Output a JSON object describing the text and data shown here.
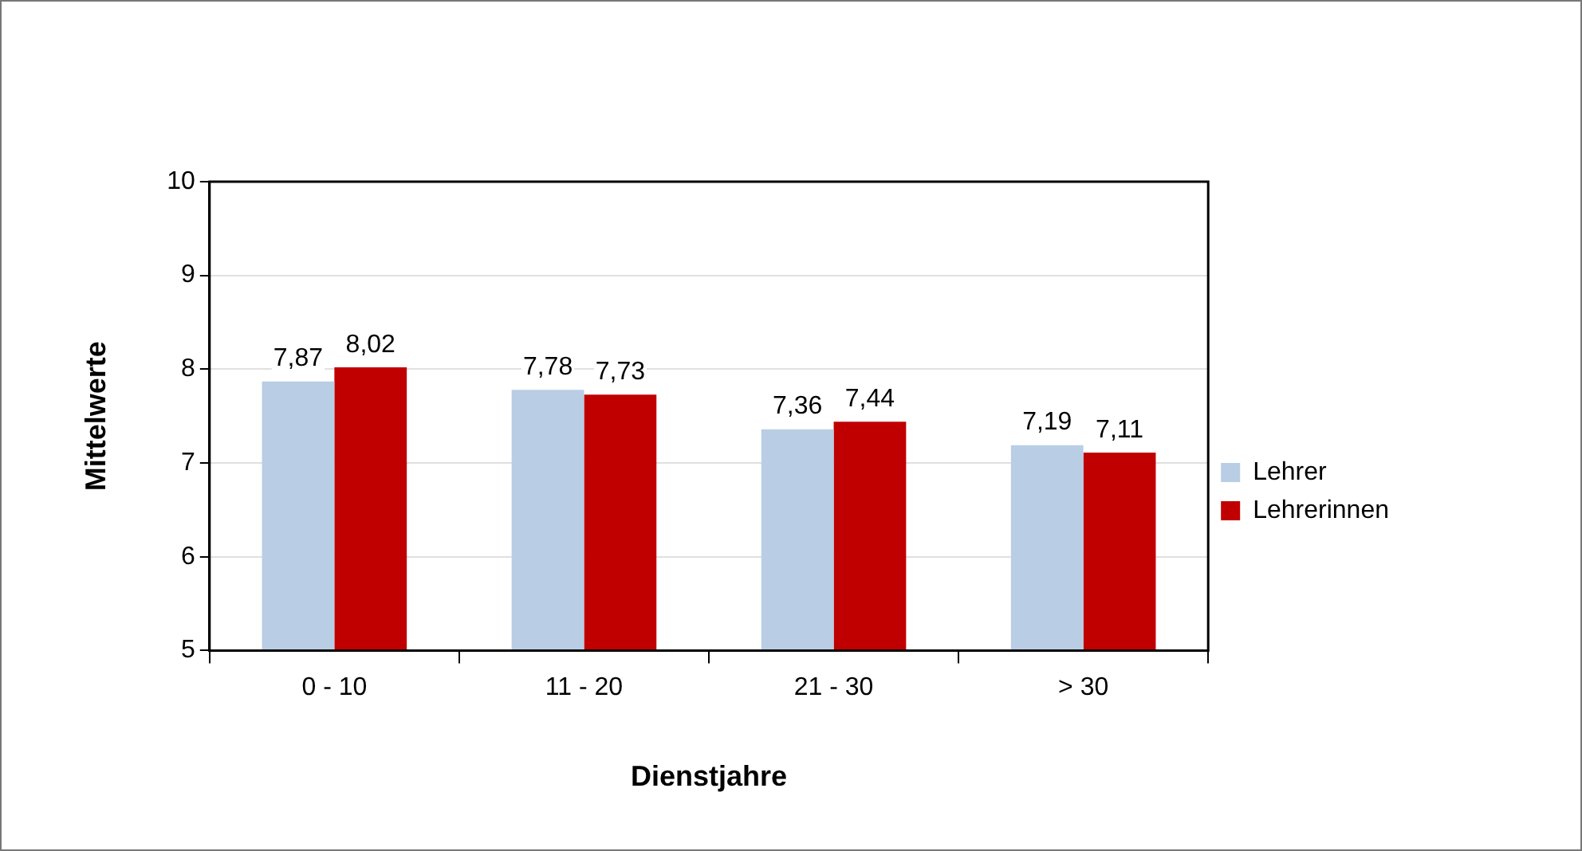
{
  "chart_data": {
    "type": "bar",
    "xlabel": "Dienstjahre",
    "ylabel": "Mittelwerte",
    "categories": [
      "0 - 10",
      "11 - 20",
      "21 - 30",
      "> 30"
    ],
    "series": [
      {
        "name": "Lehrer",
        "color": "#b9cde5",
        "values": [
          7.87,
          7.78,
          7.36,
          7.19
        ],
        "value_labels": [
          "7,87",
          "7,78",
          "7,36",
          "7,19"
        ]
      },
      {
        "name": "Lehrerinnen",
        "color": "#c00000",
        "values": [
          8.02,
          7.73,
          7.44,
          7.11
        ],
        "value_labels": [
          "8,02",
          "7,73",
          "7,44",
          "7,11"
        ]
      }
    ],
    "ylim": [
      5,
      10
    ],
    "yticks": [
      5,
      6,
      7,
      8,
      9,
      10
    ],
    "grid": "y",
    "legend": "right"
  }
}
